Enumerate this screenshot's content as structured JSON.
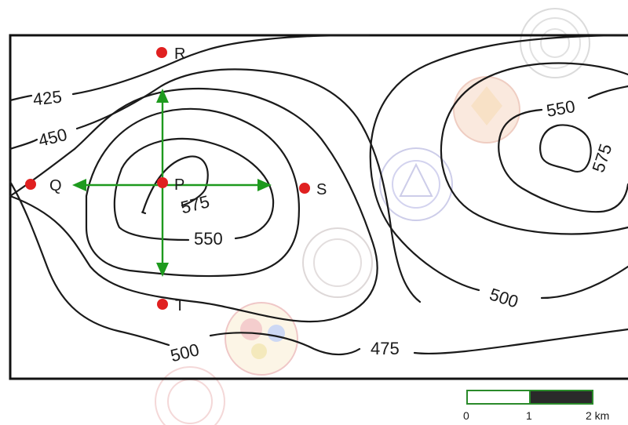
{
  "points": [
    {
      "id": "R",
      "label": "R"
    },
    {
      "id": "Q",
      "label": "Q"
    },
    {
      "id": "P",
      "label": "P"
    },
    {
      "id": "S",
      "label": "S"
    },
    {
      "id": "T",
      "label": "T"
    }
  ],
  "contour_labels": {
    "c425": "425",
    "c450": "450",
    "c575_left": "575",
    "c550_left": "550",
    "c500_bottom": "500",
    "c475": "475",
    "c550_right": "550",
    "c575_right": "575",
    "c500_right": "500"
  },
  "scale_bar": {
    "labels": [
      "0",
      "1",
      "2 km"
    ],
    "segments": [
      {
        "from": 0,
        "to": 1,
        "fill": "white"
      },
      {
        "from": 1,
        "to": 2,
        "fill": "black"
      }
    ]
  },
  "colors": {
    "point": "#e02020",
    "arrow": "#1e9a1e",
    "contour": "#1a1a1a",
    "scale_outline": "#2a8a2a"
  },
  "watermarks": [
    {
      "name": "stamp-logo-1"
    },
    {
      "name": "stamp-logo-2"
    },
    {
      "name": "stamp-logo-3"
    },
    {
      "name": "stamp-logo-4"
    },
    {
      "name": "stamp-logo-5"
    },
    {
      "name": "stamp-logo-6"
    }
  ]
}
